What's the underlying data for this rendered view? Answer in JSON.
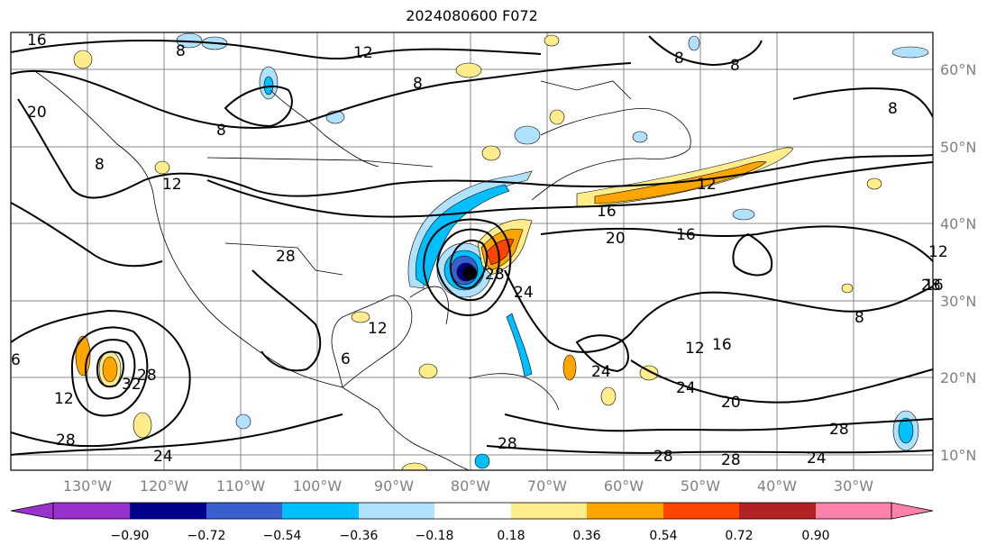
{
  "title": "2024080600 F072",
  "map": {
    "lon_labels": [
      "130°W",
      "120°W",
      "110°W",
      "100°W",
      "90°W",
      "80°W",
      "70°W",
      "60°W",
      "50°W",
      "40°W",
      "30°W"
    ],
    "lat_labels": [
      "60°N",
      "50°N",
      "40°N",
      "30°N",
      "20°N",
      "10°N"
    ],
    "contour_labels": [
      "16",
      "8",
      "12",
      "8",
      "8",
      "20",
      "8",
      "12",
      "8",
      "16",
      "12",
      "28",
      "20",
      "16",
      "12",
      "8",
      "28",
      "12",
      "6",
      "6",
      "32",
      "28",
      "12",
      "24",
      "24",
      "28",
      "28",
      "24",
      "28",
      "20",
      "28",
      "24",
      "16",
      "12",
      "8",
      "8",
      "24",
      "16",
      "28",
      "28"
    ]
  },
  "colorbar": {
    "ticks": [
      "−0.90",
      "−0.72",
      "−0.54",
      "−0.36",
      "−0.18",
      "0.18",
      "0.36",
      "0.54",
      "0.72",
      "0.90"
    ],
    "colors": [
      "#9932cc",
      "#00008b",
      "#3a5fcd",
      "#00bfff",
      "#b0e2ff",
      "#ffffff",
      "#ffec8b",
      "#ffa500",
      "#ff4500",
      "#b22222",
      "#ff82ab"
    ]
  }
}
